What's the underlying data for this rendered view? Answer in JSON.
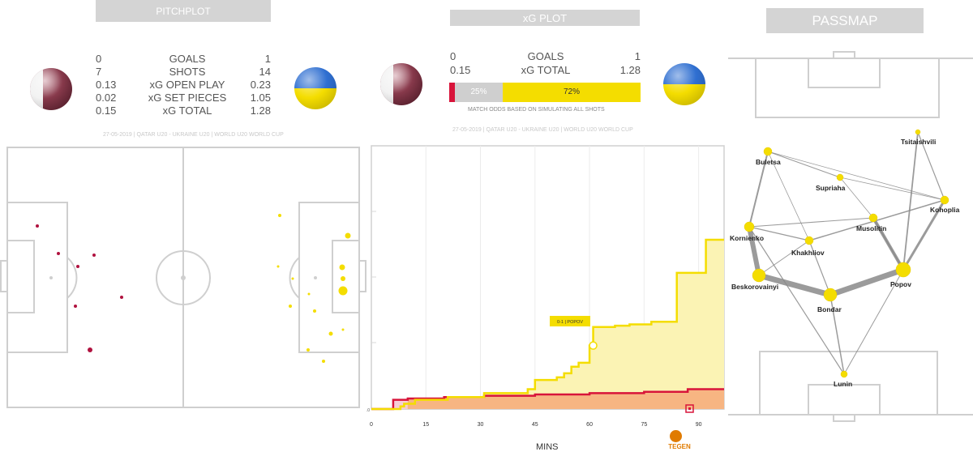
{
  "colors": {
    "qatar": "#b0123f",
    "ukraine_yellow": "#f4dd00",
    "ukraine_blue": "#2f6fd1",
    "banner": "#d4d4d4",
    "line": "#cfcfcf"
  },
  "pitchplot": {
    "title": "PITCHPLOT",
    "stats": [
      {
        "home": "0",
        "label": "GOALS",
        "away": "1"
      },
      {
        "home": "7",
        "label": "SHOTS",
        "away": "14"
      },
      {
        "home": "0.13",
        "label": "xG OPEN PLAY",
        "away": "0.23"
      },
      {
        "home": "0.02",
        "label": "xG SET PIECES",
        "away": "1.05"
      },
      {
        "home": "0.15",
        "label": "xG TOTAL",
        "away": "1.28"
      }
    ],
    "match_line": "27-05-2019 | QATAR U20 - UKRAINE U20 | WORLD U20 WORLD CUP"
  },
  "xgplot": {
    "title": "xG PLOT",
    "stats": [
      {
        "home": "0",
        "label": "GOALS",
        "away": "1"
      },
      {
        "home": "0.15",
        "label": "xG TOTAL",
        "away": "1.28"
      }
    ],
    "odds": {
      "home": 0.03,
      "draw": 0.25,
      "away": 0.72,
      "draw_label": "25%",
      "away_label": "72%"
    },
    "odds_note": "MATCH ODDS BASED ON SIMULATING ALL SHOTS",
    "match_line": "27-05-2019 | QATAR U20 - UKRAINE U20 | WORLD U20 WORLD CUP",
    "xlabel": "MINS",
    "goal_label": "0-1 | POPOV",
    "logo_text": "TEGEN"
  },
  "chart_data": {
    "type": "line",
    "xlabel": "MINS",
    "ylabel": "",
    "xlim": [
      0,
      97
    ],
    "ylim": [
      0,
      1.28
    ],
    "x_ticks": [
      0,
      15,
      30,
      45,
      60,
      75,
      90
    ],
    "y_tick_label_bottom": "0.0",
    "series": [
      {
        "name": "Qatar U20",
        "points": [
          [
            0,
            0
          ],
          [
            6,
            0
          ],
          [
            6,
            0.07
          ],
          [
            10,
            0.07
          ],
          [
            10,
            0.08
          ],
          [
            20,
            0.08
          ],
          [
            20,
            0.09
          ],
          [
            31,
            0.09
          ],
          [
            31,
            0.1
          ],
          [
            45,
            0.1
          ],
          [
            45,
            0.11
          ],
          [
            60,
            0.11
          ],
          [
            60,
            0.12
          ],
          [
            75,
            0.12
          ],
          [
            75,
            0.13
          ],
          [
            87,
            0.13
          ],
          [
            87,
            0.15
          ],
          [
            97,
            0.15
          ]
        ]
      },
      {
        "name": "Ukraine U20",
        "points": [
          [
            0,
            0
          ],
          [
            8,
            0
          ],
          [
            8,
            0.02
          ],
          [
            9,
            0.02
          ],
          [
            9,
            0.04
          ],
          [
            12,
            0.04
          ],
          [
            12,
            0.07
          ],
          [
            21,
            0.07
          ],
          [
            21,
            0.09
          ],
          [
            31,
            0.09
          ],
          [
            31,
            0.12
          ],
          [
            43,
            0.12
          ],
          [
            43,
            0.15
          ],
          [
            45,
            0.15
          ],
          [
            45,
            0.22
          ],
          [
            51,
            0.22
          ],
          [
            51,
            0.24
          ],
          [
            53,
            0.24
          ],
          [
            53,
            0.27
          ],
          [
            55,
            0.27
          ],
          [
            55,
            0.32
          ],
          [
            57,
            0.32
          ],
          [
            57,
            0.35
          ],
          [
            60,
            0.35
          ],
          [
            60,
            0.48
          ],
          [
            61,
            0.48
          ],
          [
            61,
            0.62
          ],
          [
            67,
            0.62
          ],
          [
            67,
            0.63
          ],
          [
            71,
            0.63
          ],
          [
            71,
            0.64
          ],
          [
            77,
            0.64
          ],
          [
            77,
            0.66
          ],
          [
            84,
            0.66
          ],
          [
            84,
            1.03
          ],
          [
            92,
            1.03
          ],
          [
            92,
            1.28
          ],
          [
            97,
            1.28
          ]
        ]
      }
    ],
    "annotations": [
      {
        "x": 61,
        "y": 0.48,
        "text": "0-1 | POPOV"
      }
    ]
  },
  "passmap": {
    "title": "PASSMAP",
    "players": [
      {
        "name": "Tsitaishvili"
      },
      {
        "name": "Buletsa"
      },
      {
        "name": "Supriaha"
      },
      {
        "name": "Kohoplia"
      },
      {
        "name": "Kornienko"
      },
      {
        "name": "Musolitin"
      },
      {
        "name": "Khakhliov"
      },
      {
        "name": "Beskorovainyi"
      },
      {
        "name": "Popov"
      },
      {
        "name": "Bondar"
      },
      {
        "name": "Lunin"
      }
    ]
  }
}
